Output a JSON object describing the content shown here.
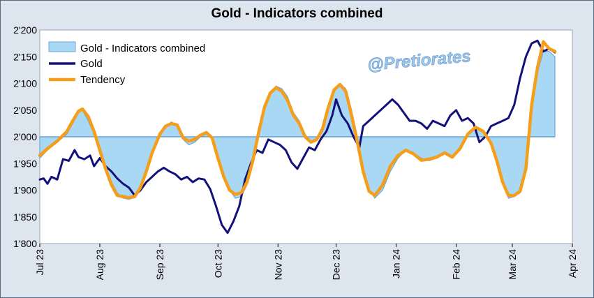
{
  "chart_data": {
    "type": "line",
    "title": "Gold - Indicators combined",
    "xlabel": "",
    "ylabel": "",
    "ylim": [
      1800,
      2200
    ],
    "y_ticks": [
      "1'800",
      "1'850",
      "1'900",
      "1'950",
      "2'000",
      "2'050",
      "2'100",
      "2'150",
      "2'200"
    ],
    "x_tick_labels": [
      "Jul 23",
      "Aug 23",
      "Sep 23",
      "Oct 23",
      "Nov 23",
      "Dec 23",
      "Jan 24",
      "Feb 24",
      "Mar 24",
      "Apr 24"
    ],
    "baseline": 2000,
    "grid": false,
    "legend_position": "top-left",
    "watermark": "@Pretiorates",
    "series": [
      {
        "name": "Gold - Indicators combined",
        "style": "area-from-baseline",
        "color": "#a9d8f5",
        "edge": "#6fa6d6",
        "points": [
          [
            "2023-07-01",
            1960
          ],
          [
            "2023-07-05",
            1975
          ],
          [
            "2023-07-10",
            1990
          ],
          [
            "2023-07-15",
            2005
          ],
          [
            "2023-07-18",
            2025
          ],
          [
            "2023-07-21",
            2045
          ],
          [
            "2023-07-23",
            2050
          ],
          [
            "2023-07-26",
            2030
          ],
          [
            "2023-07-29",
            2005
          ],
          [
            "2023-08-01",
            1975
          ],
          [
            "2023-08-04",
            1945
          ],
          [
            "2023-08-07",
            1915
          ],
          [
            "2023-08-10",
            1895
          ],
          [
            "2023-08-13",
            1885
          ],
          [
            "2023-08-16",
            1883
          ],
          [
            "2023-08-19",
            1886
          ],
          [
            "2023-08-22",
            1900
          ],
          [
            "2023-08-25",
            1930
          ],
          [
            "2023-08-28",
            1965
          ],
          [
            "2023-09-01",
            2000
          ],
          [
            "2023-09-04",
            2020
          ],
          [
            "2023-09-07",
            2028
          ],
          [
            "2023-09-10",
            2020
          ],
          [
            "2023-09-13",
            1995
          ],
          [
            "2023-09-16",
            1985
          ],
          [
            "2023-09-19",
            1990
          ],
          [
            "2023-09-22",
            2000
          ],
          [
            "2023-09-25",
            2005
          ],
          [
            "2023-09-28",
            1995
          ],
          [
            "2023-10-01",
            1960
          ],
          [
            "2023-10-04",
            1930
          ],
          [
            "2023-10-07",
            1900
          ],
          [
            "2023-10-10",
            1885
          ],
          [
            "2023-10-13",
            1888
          ],
          [
            "2023-10-16",
            1910
          ],
          [
            "2023-10-19",
            1950
          ],
          [
            "2023-10-22",
            2000
          ],
          [
            "2023-10-25",
            2050
          ],
          [
            "2023-10-28",
            2080
          ],
          [
            "2023-10-31",
            2095
          ],
          [
            "2023-11-03",
            2090
          ],
          [
            "2023-11-06",
            2075
          ],
          [
            "2023-11-09",
            2045
          ],
          [
            "2023-11-12",
            2030
          ],
          [
            "2023-11-15",
            2005
          ],
          [
            "2023-11-18",
            1990
          ],
          [
            "2023-11-21",
            1995
          ],
          [
            "2023-11-24",
            2010
          ],
          [
            "2023-11-27",
            2050
          ],
          [
            "2023-11-30",
            2085
          ],
          [
            "2023-12-03",
            2100
          ],
          [
            "2023-12-06",
            2090
          ],
          [
            "2023-12-09",
            2050
          ],
          [
            "2023-12-12",
            2000
          ],
          [
            "2023-12-15",
            1940
          ],
          [
            "2023-12-18",
            1900
          ],
          [
            "2023-12-21",
            1885
          ],
          [
            "2023-12-25",
            1900
          ],
          [
            "2023-12-29",
            1935
          ],
          [
            "2024-01-02",
            1960
          ],
          [
            "2024-01-06",
            1975
          ],
          [
            "2024-01-10",
            1970
          ],
          [
            "2024-01-14",
            1960
          ],
          [
            "2024-01-18",
            1955
          ],
          [
            "2024-01-22",
            1960
          ],
          [
            "2024-01-26",
            1968
          ],
          [
            "2024-01-30",
            1965
          ],
          [
            "2024-02-03",
            1975
          ],
          [
            "2024-02-07",
            2005
          ],
          [
            "2024-02-11",
            2015
          ],
          [
            "2024-02-15",
            2008
          ],
          [
            "2024-02-19",
            1990
          ],
          [
            "2024-02-22",
            1960
          ],
          [
            "2024-02-25",
            1918
          ],
          [
            "2024-02-28",
            1885
          ],
          [
            "2024-03-02",
            1888
          ],
          [
            "2024-03-05",
            1895
          ],
          [
            "2024-03-08",
            1940
          ],
          [
            "2024-03-11",
            2050
          ],
          [
            "2024-03-14",
            2120
          ],
          [
            "2024-03-17",
            2160
          ],
          [
            "2024-03-20",
            2160
          ],
          [
            "2024-03-23",
            2150
          ]
        ]
      },
      {
        "name": "Gold",
        "style": "line",
        "color": "#12127a",
        "points": [
          [
            "2023-07-01",
            1920
          ],
          [
            "2023-07-03",
            1922
          ],
          [
            "2023-07-05",
            1912
          ],
          [
            "2023-07-07",
            1925
          ],
          [
            "2023-07-10",
            1920
          ],
          [
            "2023-07-13",
            1958
          ],
          [
            "2023-07-16",
            1955
          ],
          [
            "2023-07-19",
            1975
          ],
          [
            "2023-07-21",
            1962
          ],
          [
            "2023-07-24",
            1958
          ],
          [
            "2023-07-27",
            1965
          ],
          [
            "2023-07-29",
            1945
          ],
          [
            "2023-08-01",
            1960
          ],
          [
            "2023-08-04",
            1945
          ],
          [
            "2023-08-07",
            1935
          ],
          [
            "2023-08-10",
            1922
          ],
          [
            "2023-08-13",
            1912
          ],
          [
            "2023-08-16",
            1905
          ],
          [
            "2023-08-19",
            1890
          ],
          [
            "2023-08-22",
            1900
          ],
          [
            "2023-08-25",
            1915
          ],
          [
            "2023-08-28",
            1925
          ],
          [
            "2023-08-31",
            1935
          ],
          [
            "2023-09-03",
            1942
          ],
          [
            "2023-09-06",
            1935
          ],
          [
            "2023-09-09",
            1930
          ],
          [
            "2023-09-12",
            1920
          ],
          [
            "2023-09-15",
            1925
          ],
          [
            "2023-09-18",
            1915
          ],
          [
            "2023-09-21",
            1922
          ],
          [
            "2023-09-24",
            1920
          ],
          [
            "2023-09-27",
            1902
          ],
          [
            "2023-09-30",
            1870
          ],
          [
            "2023-10-03",
            1835
          ],
          [
            "2023-10-06",
            1820
          ],
          [
            "2023-10-09",
            1842
          ],
          [
            "2023-10-12",
            1870
          ],
          [
            "2023-10-15",
            1920
          ],
          [
            "2023-10-18",
            1950
          ],
          [
            "2023-10-21",
            1975
          ],
          [
            "2023-10-24",
            1970
          ],
          [
            "2023-10-27",
            1995
          ],
          [
            "2023-10-30",
            1990
          ],
          [
            "2023-11-02",
            1985
          ],
          [
            "2023-11-05",
            1975
          ],
          [
            "2023-11-08",
            1952
          ],
          [
            "2023-11-11",
            1940
          ],
          [
            "2023-11-14",
            1960
          ],
          [
            "2023-11-17",
            1980
          ],
          [
            "2023-11-20",
            1975
          ],
          [
            "2023-11-23",
            1995
          ],
          [
            "2023-11-26",
            2010
          ],
          [
            "2023-11-29",
            2040
          ],
          [
            "2023-12-01",
            2070
          ],
          [
            "2023-12-04",
            2040
          ],
          [
            "2023-12-07",
            2025
          ],
          [
            "2023-12-10",
            2000
          ],
          [
            "2023-12-13",
            1980
          ],
          [
            "2023-12-15",
            2020
          ],
          [
            "2023-12-18",
            2030
          ],
          [
            "2023-12-21",
            2040
          ],
          [
            "2023-12-24",
            2050
          ],
          [
            "2023-12-27",
            2060
          ],
          [
            "2023-12-30",
            2070
          ],
          [
            "2024-01-02",
            2060
          ],
          [
            "2024-01-05",
            2045
          ],
          [
            "2024-01-08",
            2030
          ],
          [
            "2024-01-11",
            2030
          ],
          [
            "2024-01-14",
            2025
          ],
          [
            "2024-01-17",
            2015
          ],
          [
            "2024-01-20",
            2030
          ],
          [
            "2024-01-23",
            2025
          ],
          [
            "2024-01-26",
            2020
          ],
          [
            "2024-01-29",
            2040
          ],
          [
            "2024-02-01",
            2050
          ],
          [
            "2024-02-04",
            2030
          ],
          [
            "2024-02-07",
            2035
          ],
          [
            "2024-02-10",
            2025
          ],
          [
            "2024-02-13",
            1990
          ],
          [
            "2024-02-16",
            2000
          ],
          [
            "2024-02-19",
            2020
          ],
          [
            "2024-02-22",
            2025
          ],
          [
            "2024-02-25",
            2030
          ],
          [
            "2024-02-28",
            2035
          ],
          [
            "2024-03-02",
            2060
          ],
          [
            "2024-03-05",
            2110
          ],
          [
            "2024-03-08",
            2150
          ],
          [
            "2024-03-11",
            2175
          ],
          [
            "2024-03-14",
            2180
          ],
          [
            "2024-03-17",
            2160
          ],
          [
            "2024-03-20",
            2165
          ],
          [
            "2024-03-23",
            2158
          ]
        ]
      },
      {
        "name": "Tendency",
        "style": "line",
        "color": "#f59e1b",
        "points": [
          [
            "2023-07-01",
            1965
          ],
          [
            "2023-07-05",
            1978
          ],
          [
            "2023-07-10",
            1992
          ],
          [
            "2023-07-15",
            2010
          ],
          [
            "2023-07-18",
            2030
          ],
          [
            "2023-07-21",
            2048
          ],
          [
            "2023-07-23",
            2052
          ],
          [
            "2023-07-26",
            2038
          ],
          [
            "2023-07-29",
            2010
          ],
          [
            "2023-08-01",
            1975
          ],
          [
            "2023-08-04",
            1940
          ],
          [
            "2023-08-07",
            1910
          ],
          [
            "2023-08-10",
            1890
          ],
          [
            "2023-08-13",
            1888
          ],
          [
            "2023-08-16",
            1886
          ],
          [
            "2023-08-19",
            1888
          ],
          [
            "2023-08-22",
            1905
          ],
          [
            "2023-08-25",
            1935
          ],
          [
            "2023-08-28",
            1970
          ],
          [
            "2023-09-01",
            2005
          ],
          [
            "2023-09-04",
            2020
          ],
          [
            "2023-09-07",
            2025
          ],
          [
            "2023-09-10",
            2022
          ],
          [
            "2023-09-13",
            1998
          ],
          [
            "2023-09-16",
            1992
          ],
          [
            "2023-09-19",
            1995
          ],
          [
            "2023-09-22",
            2003
          ],
          [
            "2023-09-25",
            2008
          ],
          [
            "2023-09-28",
            1998
          ],
          [
            "2023-10-01",
            1960
          ],
          [
            "2023-10-04",
            1925
          ],
          [
            "2023-10-07",
            1900
          ],
          [
            "2023-10-10",
            1892
          ],
          [
            "2023-10-13",
            1895
          ],
          [
            "2023-10-16",
            1915
          ],
          [
            "2023-10-19",
            1955
          ],
          [
            "2023-10-22",
            2008
          ],
          [
            "2023-10-25",
            2055
          ],
          [
            "2023-10-28",
            2082
          ],
          [
            "2023-10-31",
            2092
          ],
          [
            "2023-11-03",
            2085
          ],
          [
            "2023-11-06",
            2068
          ],
          [
            "2023-11-09",
            2040
          ],
          [
            "2023-11-12",
            2025
          ],
          [
            "2023-11-15",
            2000
          ],
          [
            "2023-11-18",
            1990
          ],
          [
            "2023-11-21",
            1995
          ],
          [
            "2023-11-24",
            2015
          ],
          [
            "2023-11-27",
            2055
          ],
          [
            "2023-11-30",
            2088
          ],
          [
            "2023-12-03",
            2098
          ],
          [
            "2023-12-06",
            2085
          ],
          [
            "2023-12-09",
            2040
          ],
          [
            "2023-12-12",
            1990
          ],
          [
            "2023-12-15",
            1935
          ],
          [
            "2023-12-18",
            1898
          ],
          [
            "2023-12-21",
            1890
          ],
          [
            "2023-12-25",
            1910
          ],
          [
            "2023-12-29",
            1945
          ],
          [
            "2024-01-02",
            1965
          ],
          [
            "2024-01-06",
            1975
          ],
          [
            "2024-01-10",
            1968
          ],
          [
            "2024-01-14",
            1956
          ],
          [
            "2024-01-18",
            1958
          ],
          [
            "2024-01-22",
            1962
          ],
          [
            "2024-01-26",
            1970
          ],
          [
            "2024-01-30",
            1962
          ],
          [
            "2024-02-03",
            1978
          ],
          [
            "2024-02-07",
            2005
          ],
          [
            "2024-02-11",
            2018
          ],
          [
            "2024-02-15",
            2010
          ],
          [
            "2024-02-19",
            1988
          ],
          [
            "2024-02-22",
            1955
          ],
          [
            "2024-02-25",
            1915
          ],
          [
            "2024-02-28",
            1890
          ],
          [
            "2024-03-02",
            1890
          ],
          [
            "2024-03-05",
            1898
          ],
          [
            "2024-03-08",
            1940
          ],
          [
            "2024-03-11",
            2060
          ],
          [
            "2024-03-14",
            2130
          ],
          [
            "2024-03-17",
            2178
          ],
          [
            "2024-03-20",
            2165
          ],
          [
            "2024-03-23",
            2160
          ]
        ]
      }
    ]
  }
}
